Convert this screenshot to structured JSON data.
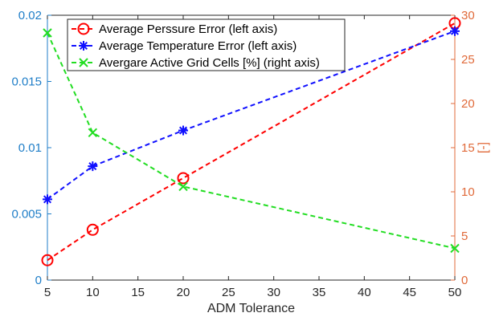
{
  "chart_data": {
    "type": "line",
    "x": [
      5,
      10,
      20,
      50
    ],
    "xlabel": "ADM Tolerance",
    "xlim": [
      5,
      50
    ],
    "xticks": [
      "5",
      "10",
      "15",
      "20",
      "25",
      "30",
      "35",
      "40",
      "45",
      "50"
    ],
    "ylim_left": [
      0,
      0.02
    ],
    "yticks_left": [
      "0",
      "0.005",
      "0.01",
      "0.015",
      "0.02"
    ],
    "ylim_right": [
      0,
      30
    ],
    "yticks_right": [
      "0",
      "5",
      "10",
      "15",
      "20",
      "25",
      "30"
    ],
    "ylabel_right": "[-]",
    "grid": false,
    "legend_position": "top-left",
    "colors": {
      "left_axis": "#1f7ec8",
      "right_axis": "#e06a3a",
      "x_axis": "#262626"
    },
    "series": [
      {
        "name": "Average Perssure Error (left axis)",
        "axis": "left",
        "color": "#ff0000",
        "marker": "circle",
        "values": [
          0.0015,
          0.0038,
          0.0077,
          0.0194
        ]
      },
      {
        "name": "Average Temperature Error (left axis)",
        "axis": "left",
        "color": "#1010ff",
        "marker": "asterisk",
        "values": [
          0.0061,
          0.0086,
          0.0113,
          0.0188
        ]
      },
      {
        "name": "Avergare Active Grid Cells [%] (right axis)",
        "axis": "right",
        "color": "#22dd22",
        "marker": "x",
        "values": [
          28.0,
          16.7,
          10.6,
          3.6
        ]
      }
    ]
  }
}
